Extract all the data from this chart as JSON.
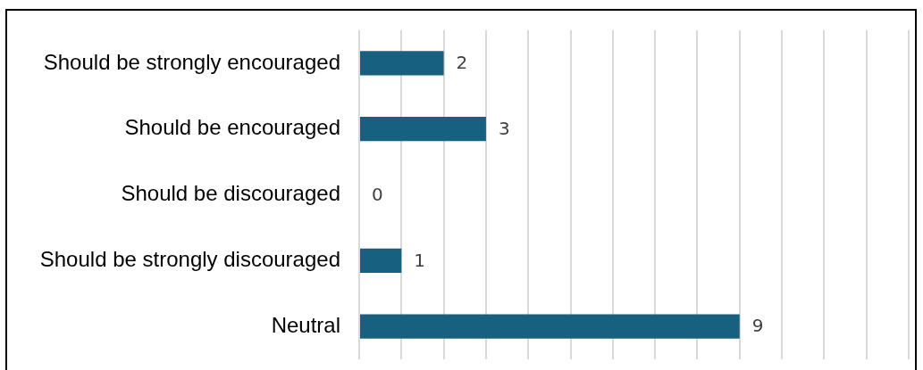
{
  "chart_data": {
    "type": "bar",
    "orientation": "horizontal",
    "categories": [
      "Should be strongly encouraged",
      "Should be encouraged",
      "Should be discouraged",
      "Should be strongly discouraged",
      "Neutral"
    ],
    "values": [
      2,
      3,
      0,
      1,
      9
    ],
    "color": "#17607f",
    "xlim": [
      0,
      13
    ],
    "xticks": [
      {
        "value": 0,
        "label": null
      },
      {
        "value": 1,
        "label": null
      },
      {
        "value": 2,
        "label": null
      },
      {
        "value": 3,
        "label": null
      },
      {
        "value": 4,
        "label": null
      },
      {
        "value": 5,
        "label": null
      },
      {
        "value": 6,
        "label": null
      },
      {
        "value": 7,
        "label": null
      },
      {
        "value": 8,
        "label": null
      },
      {
        "value": 9,
        "label": null
      },
      {
        "value": 10,
        "label": null
      },
      {
        "value": 11,
        "label": null
      },
      {
        "value": 12,
        "label": null
      },
      {
        "value": 13,
        "label": null
      }
    ],
    "grid": "x",
    "tick_labels": "y",
    "data_labels": true
  }
}
